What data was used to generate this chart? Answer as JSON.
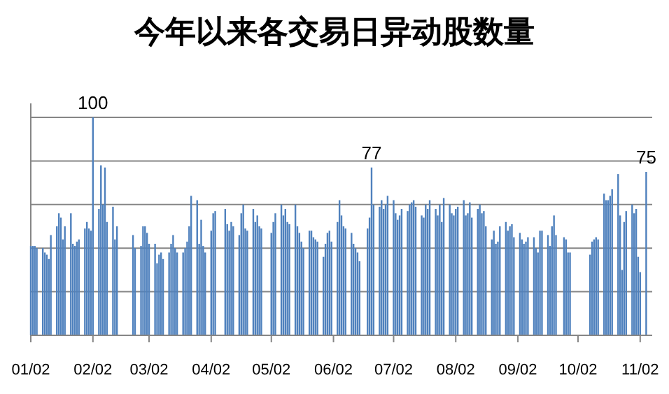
{
  "chart_data": {
    "type": "bar",
    "title": "今年以来各交易日异动股数量",
    "x": [
      "--01-02",
      "--01-03",
      "--01-04",
      "--01-05",
      "--01-08",
      "--01-09",
      "--01-10",
      "--01-11",
      "--01-12",
      "--01-15",
      "--01-16",
      "--01-17",
      "--01-18",
      "--01-19",
      "--01-22",
      "--01-23",
      "--01-24",
      "--01-25",
      "--01-26",
      "--01-29",
      "--01-30",
      "--01-31",
      "--02-01",
      "--02-02",
      "--02-05",
      "--02-06",
      "--02-07",
      "--02-08",
      "--02-09",
      "--02-12",
      "--02-13",
      "--02-14",
      "--02-22",
      "--02-23",
      "--02-26",
      "--02-27",
      "--02-28",
      "--03-01",
      "--03-02",
      "--03-05",
      "--03-06",
      "--03-07",
      "--03-08",
      "--03-09",
      "--03-12",
      "--03-13",
      "--03-14",
      "--03-15",
      "--03-16",
      "--03-19",
      "--03-20",
      "--03-21",
      "--03-22",
      "--03-23",
      "--03-26",
      "--03-27",
      "--03-28",
      "--03-29",
      "--03-30",
      "--04-02",
      "--04-03",
      "--04-04",
      "--04-09",
      "--04-10",
      "--04-11",
      "--04-12",
      "--04-13",
      "--04-16",
      "--04-17",
      "--04-18",
      "--04-19",
      "--04-20",
      "--04-23",
      "--04-24",
      "--04-25",
      "--04-26",
      "--04-27",
      "--05-02",
      "--05-03",
      "--05-04",
      "--05-07",
      "--05-08",
      "--05-09",
      "--05-10",
      "--05-11",
      "--05-14",
      "--05-15",
      "--05-16",
      "--05-17",
      "--05-18",
      "--05-21",
      "--05-22",
      "--05-23",
      "--05-24",
      "--05-25",
      "--05-28",
      "--05-29",
      "--05-30",
      "--05-31",
      "--06-01",
      "--06-04",
      "--06-05",
      "--06-06",
      "--06-07",
      "--06-08",
      "--06-11",
      "--06-12",
      "--06-13",
      "--06-14",
      "--06-15",
      "--06-19",
      "--06-20",
      "--06-21",
      "--06-22",
      "--06-25",
      "--06-26",
      "--06-27",
      "--06-28",
      "--06-29",
      "--07-02",
      "--07-03",
      "--07-04",
      "--07-05",
      "--07-06",
      "--07-09",
      "--07-10",
      "--07-11",
      "--07-12",
      "--07-13",
      "--07-16",
      "--07-17",
      "--07-18",
      "--07-19",
      "--07-20",
      "--07-23",
      "--07-24",
      "--07-25",
      "--07-26",
      "--07-27",
      "--07-30",
      "--07-31",
      "--08-01",
      "--08-02",
      "--08-03",
      "--08-06",
      "--08-07",
      "--08-08",
      "--08-09",
      "--08-10",
      "--08-13",
      "--08-14",
      "--08-15",
      "--08-16",
      "--08-17",
      "--08-20",
      "--08-21",
      "--08-22",
      "--08-23",
      "--08-24",
      "--08-27",
      "--08-28",
      "--08-29",
      "--08-30",
      "--08-31",
      "--09-03",
      "--09-04",
      "--09-05",
      "--09-06",
      "--09-07",
      "--09-10",
      "--09-11",
      "--09-12",
      "--09-13",
      "--09-14",
      "--09-17",
      "--09-18",
      "--09-19",
      "--09-20",
      "--09-21",
      "--09-25",
      "--09-26",
      "--09-27",
      "--09-28",
      "--10-08",
      "--10-09",
      "--10-10",
      "--10-11",
      "--10-12",
      "--10-15",
      "--10-16",
      "--10-17",
      "--10-18",
      "--10-19",
      "--10-22",
      "--10-23",
      "--10-24",
      "--10-25",
      "--10-26",
      "--10-29",
      "--10-30",
      "--10-31",
      "--11-01",
      "--11-02",
      "--11-05"
    ],
    "values": [
      41,
      41,
      41,
      40,
      40,
      38,
      37,
      35,
      46,
      50,
      56,
      54,
      44,
      50,
      56,
      42,
      41,
      43,
      44,
      49,
      52,
      49,
      48,
      100,
      58,
      78,
      60,
      77,
      52,
      59,
      44,
      50,
      46,
      40,
      41,
      50,
      50,
      47,
      42,
      42,
      33,
      37,
      38,
      35,
      38,
      42,
      46,
      40,
      38,
      38,
      40,
      43,
      50,
      64,
      62,
      42,
      53,
      41,
      38,
      48,
      56,
      57,
      58,
      51,
      48,
      52,
      50,
      46,
      56,
      60,
      49,
      48,
      58,
      52,
      55,
      50,
      49,
      47,
      52,
      56,
      60,
      55,
      58,
      52,
      51,
      60,
      50,
      47,
      43,
      40,
      48,
      48,
      45,
      44,
      43,
      36,
      42,
      47,
      48,
      43,
      52,
      62,
      55,
      50,
      49,
      47,
      42,
      40,
      38,
      34,
      49,
      54,
      77,
      60,
      59,
      62,
      58,
      60,
      64,
      62,
      56,
      53,
      55,
      58,
      57,
      60,
      61,
      62,
      59,
      55,
      54,
      60,
      58,
      62,
      58,
      55,
      60,
      52,
      63,
      60,
      56,
      55,
      58,
      59,
      62,
      55,
      56,
      61,
      54,
      58,
      60,
      56,
      57,
      50,
      44,
      48,
      42,
      43,
      50,
      52,
      48,
      50,
      51,
      45,
      47,
      44,
      42,
      43,
      45,
      45,
      40,
      38,
      48,
      48,
      46,
      41,
      50,
      55,
      46,
      45,
      44,
      38,
      38,
      37,
      43,
      44,
      45,
      44,
      65,
      62,
      62,
      64,
      67,
      74,
      55,
      30,
      52,
      57,
      60,
      56,
      58,
      36,
      29,
      75
    ],
    "value_labels": [
      null,
      null,
      null,
      null,
      null,
      null,
      null,
      null,
      null,
      null,
      null,
      null,
      null,
      null,
      null,
      null,
      null,
      null,
      null,
      null,
      null,
      null,
      null,
      "100",
      null,
      null,
      null,
      null,
      null,
      null,
      null,
      null,
      null,
      null,
      null,
      null,
      null,
      null,
      null,
      null,
      null,
      null,
      null,
      null,
      null,
      null,
      null,
      null,
      null,
      null,
      null,
      null,
      null,
      null,
      null,
      null,
      null,
      null,
      null,
      null,
      null,
      null,
      null,
      null,
      null,
      null,
      null,
      null,
      null,
      null,
      null,
      null,
      null,
      null,
      null,
      null,
      null,
      null,
      null,
      null,
      null,
      null,
      null,
      null,
      null,
      null,
      null,
      null,
      null,
      null,
      null,
      null,
      null,
      null,
      null,
      null,
      null,
      null,
      null,
      null,
      null,
      null,
      null,
      null,
      null,
      null,
      null,
      null,
      null,
      null,
      null,
      null,
      "77",
      null,
      null,
      null,
      null,
      null,
      null,
      null,
      null,
      null,
      null,
      null,
      null,
      null,
      null,
      null,
      null,
      null,
      null,
      null,
      null,
      null,
      null,
      null,
      null,
      null,
      null,
      null,
      null,
      null,
      null,
      null,
      null,
      null,
      null,
      null,
      null,
      null,
      null,
      null,
      null,
      null,
      null,
      null,
      null,
      null,
      null,
      null,
      null,
      null,
      null,
      null,
      null,
      null,
      null,
      null,
      null,
      null,
      null,
      null,
      null,
      null,
      null,
      null,
      null,
      null,
      null,
      null,
      null,
      null,
      null,
      null,
      null,
      null,
      null,
      null,
      null,
      null,
      null,
      null,
      null,
      null,
      null,
      null,
      null,
      null,
      null,
      null,
      null,
      null,
      null,
      "75"
    ],
    "color": "#4f81bd",
    "xlim": [
      "--01-02",
      "--11-08"
    ],
    "xticks": [
      {
        "value": "--01-02",
        "label": "01/02"
      },
      {
        "value": "--02-02",
        "label": "02/02"
      },
      {
        "value": "--03-02",
        "label": "03/02"
      },
      {
        "value": "--04-02",
        "label": "04/02"
      },
      {
        "value": "--05-02",
        "label": "05/02"
      },
      {
        "value": "--06-02",
        "label": "06/02"
      },
      {
        "value": "--07-02",
        "label": "07/02"
      },
      {
        "value": "--08-02",
        "label": "08/02"
      },
      {
        "value": "--09-02",
        "label": "09/02"
      },
      {
        "value": "--10-02",
        "label": "10/02"
      },
      {
        "value": "--11-02",
        "label": "11/02"
      }
    ],
    "ylim": [
      0,
      100
    ],
    "yticks": [
      {
        "value": 0,
        "label": null
      },
      {
        "value": 20,
        "label": null
      },
      {
        "value": 40,
        "label": null
      },
      {
        "value": 60,
        "label": null
      },
      {
        "value": 80,
        "label": null
      },
      {
        "value": 100,
        "label": null
      }
    ],
    "grid": "y"
  }
}
